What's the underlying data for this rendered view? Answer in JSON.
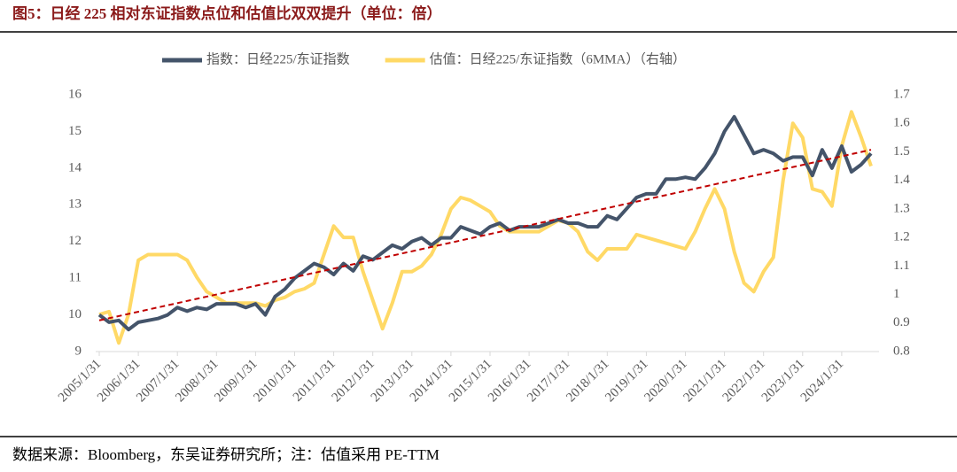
{
  "chart_data": {
    "type": "line",
    "title": "图5：日经 225 相对东证指数点位和估值比双双提升（单位：倍）",
    "source": "数据来源：Bloomberg，东吴证券研究所；注：估值采用 PE-TTM",
    "categories": [
      "2005/1/31",
      null,
      null,
      null,
      "2006/1/31",
      null,
      null,
      null,
      "2007/1/31",
      null,
      null,
      null,
      "2008/1/31",
      null,
      null,
      null,
      "2009/1/31",
      null,
      null,
      null,
      "2010/1/31",
      null,
      null,
      null,
      "2011/1/31",
      null,
      null,
      null,
      "2012/1/31",
      null,
      null,
      null,
      "2013/1/31",
      null,
      null,
      null,
      "2014/1/31",
      null,
      null,
      null,
      "2015/1/31",
      null,
      null,
      null,
      "2016/1/31",
      null,
      null,
      null,
      "2017/1/31",
      null,
      null,
      null,
      "2018/1/31",
      null,
      null,
      null,
      "2019/1/31",
      null,
      null,
      null,
      "2020/1/31",
      null,
      null,
      null,
      "2021/1/31",
      null,
      null,
      null,
      "2022/1/31",
      null,
      null,
      null,
      "2023/1/31",
      null,
      null,
      null,
      "2024/1/31",
      null,
      null,
      null
    ],
    "series": [
      {
        "name": "指数：日经225/东证指数",
        "color": "#44546a",
        "axis": "y",
        "values": [
          10.0,
          9.8,
          9.85,
          9.6,
          9.8,
          9.85,
          9.9,
          10.0,
          10.2,
          10.1,
          10.2,
          10.15,
          10.3,
          10.3,
          10.3,
          10.2,
          10.3,
          10.0,
          10.5,
          10.7,
          11.0,
          11.2,
          11.4,
          11.3,
          11.1,
          11.4,
          11.2,
          11.6,
          11.5,
          11.7,
          11.9,
          11.8,
          12.0,
          12.1,
          11.9,
          12.1,
          12.1,
          12.4,
          12.3,
          12.2,
          12.4,
          12.5,
          12.3,
          12.4,
          12.4,
          12.4,
          12.5,
          12.6,
          12.5,
          12.5,
          12.4,
          12.4,
          12.7,
          12.6,
          12.9,
          13.2,
          13.3,
          13.3,
          13.7,
          13.7,
          13.75,
          13.7,
          14.0,
          14.4,
          15.0,
          15.4,
          14.9,
          14.4,
          14.5,
          14.4,
          14.2,
          14.3,
          14.3,
          13.8,
          14.5,
          14.0,
          14.6,
          13.9,
          14.1,
          14.4
        ]
      },
      {
        "name": "估值：日经225/东证指数（6MMA）（右轴）",
        "color": "#ffd966",
        "axis": "y2",
        "values": [
          0.93,
          0.94,
          0.83,
          0.93,
          1.12,
          1.14,
          1.14,
          1.14,
          1.14,
          1.12,
          1.06,
          1.01,
          0.99,
          0.97,
          0.97,
          0.97,
          0.97,
          0.96,
          0.98,
          0.99,
          1.01,
          1.02,
          1.04,
          1.14,
          1.24,
          1.2,
          1.2,
          1.08,
          0.98,
          0.88,
          0.97,
          1.08,
          1.08,
          1.1,
          1.14,
          1.21,
          1.3,
          1.34,
          1.33,
          1.31,
          1.29,
          1.24,
          1.22,
          1.22,
          1.22,
          1.22,
          1.24,
          1.26,
          1.25,
          1.22,
          1.15,
          1.12,
          1.16,
          1.16,
          1.16,
          1.21,
          1.2,
          1.19,
          1.18,
          1.17,
          1.16,
          1.22,
          1.3,
          1.37,
          1.3,
          1.15,
          1.04,
          1.01,
          1.08,
          1.13,
          1.4,
          1.6,
          1.55,
          1.37,
          1.36,
          1.31,
          1.52,
          1.64,
          1.55,
          1.45
        ]
      }
    ],
    "trendline": {
      "color": "#c00000",
      "values": [
        9.85,
        14.5
      ]
    },
    "ylim": [
      9,
      16
    ],
    "yticks": [
      9,
      10,
      11,
      12,
      13,
      14,
      15,
      16
    ],
    "y2lim": [
      0.8,
      1.7
    ],
    "y2ticks": [
      0.8,
      0.9,
      1,
      1.1,
      1.2,
      1.3,
      1.4,
      1.5,
      1.6,
      1.7
    ]
  }
}
